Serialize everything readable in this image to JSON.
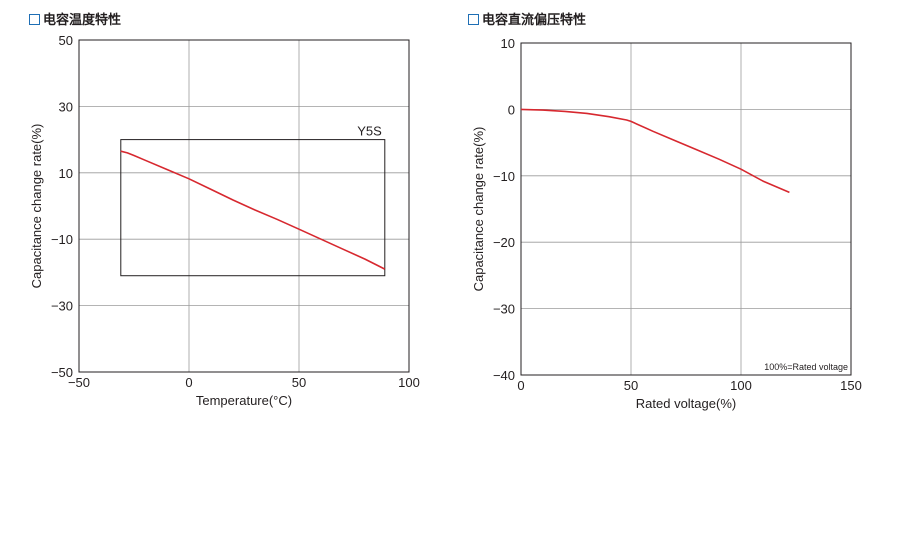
{
  "headings": [
    "电容温度特性",
    "电容直流偏压特性"
  ],
  "chart_data": [
    {
      "type": "line",
      "title": "电容温度特性",
      "xlabel": "Temperature(°C)",
      "ylabel": "Capacitance change rate(%)",
      "xlim": [
        -50,
        100
      ],
      "ylim": [
        -50,
        50
      ],
      "xticks": [
        -50,
        0,
        50,
        100
      ],
      "xtick_labels": [
        "−50",
        "0",
        "50",
        "100"
      ],
      "yticks": [
        -50,
        -30,
        -10,
        10,
        30,
        50
      ],
      "ytick_labels": [
        "−50",
        "−30",
        "−10",
        "10",
        "30",
        "50"
      ],
      "grid": true,
      "series": [
        {
          "color": "#d7282f",
          "x": [
            -31,
            -28,
            -25,
            -20,
            -10,
            0,
            10,
            20,
            30,
            40,
            50,
            60,
            70,
            80,
            89
          ],
          "y": [
            16.5,
            16,
            15.2,
            13.8,
            11,
            8.2,
            5,
            1.8,
            -1.2,
            -4,
            -7,
            -10,
            -13,
            -16,
            -19
          ]
        }
      ],
      "spec_box": {
        "label": "Y5S",
        "x": [
          -31,
          89
        ],
        "y": [
          -21,
          20
        ]
      }
    },
    {
      "type": "line",
      "title": "电容直流偏压特性",
      "xlabel": "Rated voltage(%)",
      "ylabel": "Capacitance change rate(%)",
      "xlim": [
        0,
        150
      ],
      "ylim": [
        -40,
        10
      ],
      "xticks": [
        0,
        50,
        100,
        150
      ],
      "xtick_labels": [
        "0",
        "50",
        "100",
        "150"
      ],
      "yticks": [
        -40,
        -30,
        -20,
        -10,
        0,
        10
      ],
      "ytick_labels": [
        "−40",
        "−30",
        "−20",
        "−10",
        "0",
        "10"
      ],
      "grid": true,
      "annotation": "100%=Rated voltage",
      "series": [
        {
          "color": "#d7282f",
          "x": [
            0,
            10,
            20,
            30,
            40,
            48,
            50,
            60,
            70,
            80,
            90,
            100,
            110,
            122
          ],
          "y": [
            0,
            -0.1,
            -0.3,
            -0.6,
            -1.1,
            -1.6,
            -1.8,
            -3.3,
            -4.7,
            -6.1,
            -7.5,
            -9,
            -10.8,
            -12.5
          ]
        }
      ]
    }
  ]
}
